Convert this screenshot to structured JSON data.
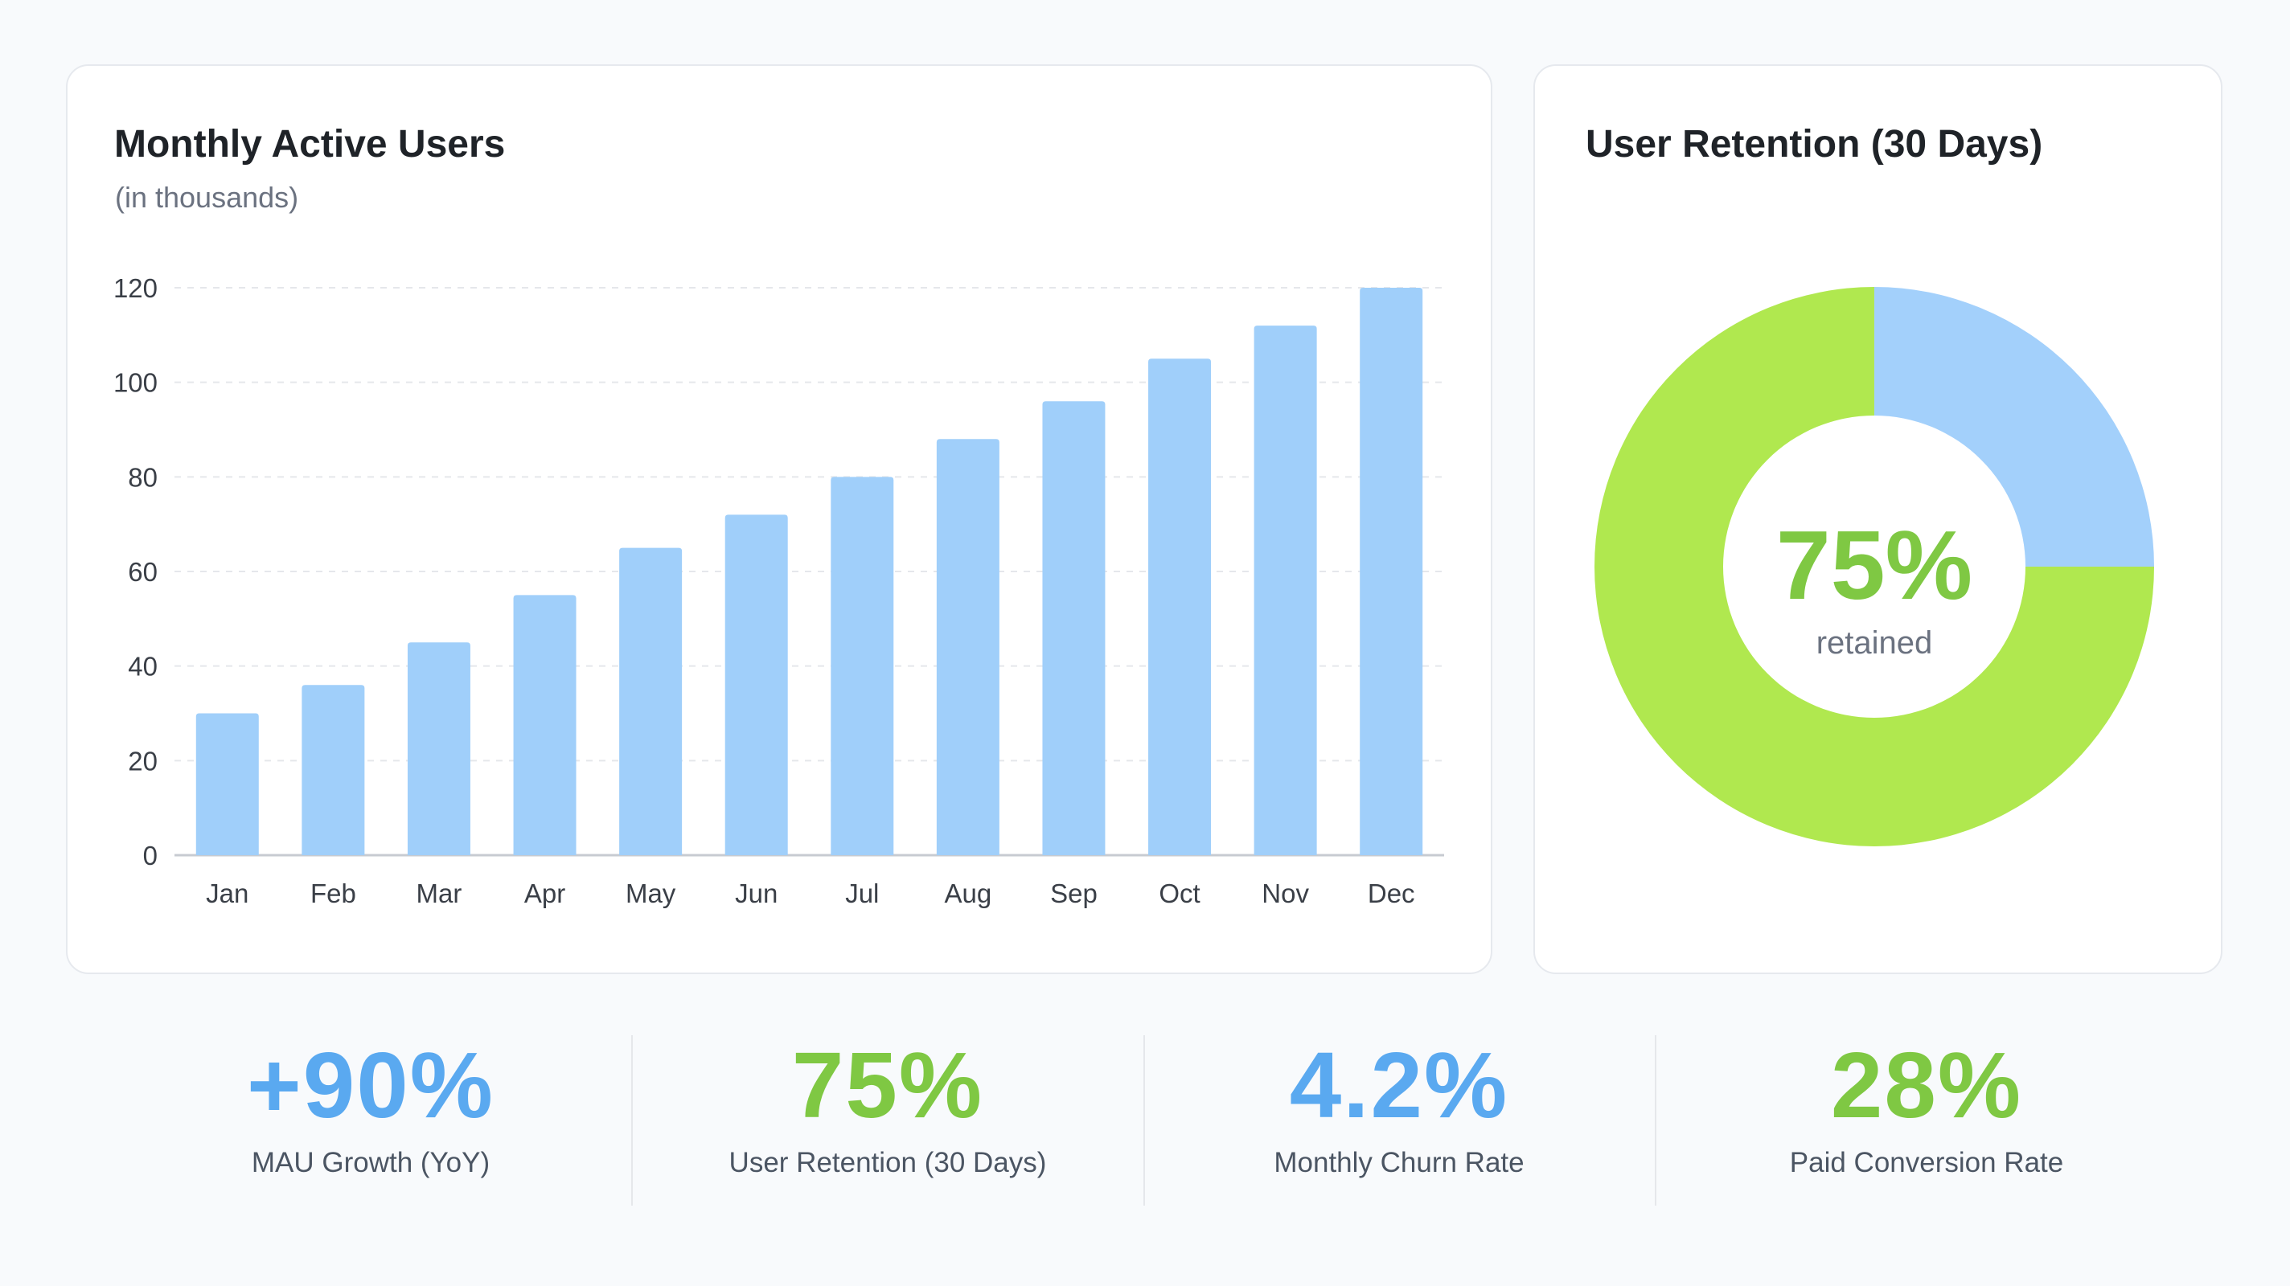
{
  "bar_card": {
    "title": "Monthly Active Users",
    "subtitle": "(in thousands)"
  },
  "donut_card": {
    "title": "User Retention (30 Days)",
    "center_value": "75%",
    "center_label": "retained"
  },
  "kpis": [
    {
      "value": "+90%",
      "label": "MAU Growth (YoY)",
      "color": "#5aa9f0"
    },
    {
      "value": "75%",
      "label": "User Retention (30 Days)",
      "color": "#7fc843"
    },
    {
      "value": "4.2%",
      "label": "Monthly Churn Rate",
      "color": "#5aa9f0"
    },
    {
      "value": "28%",
      "label": "Paid Conversion Rate",
      "color": "#7fc843"
    }
  ],
  "colors": {
    "bar": "#a0cffa",
    "retained": "#b0e84f",
    "churned": "#a3d0fb",
    "retained_text": "#7fc843",
    "blue_accent": "#5aa9f0",
    "grid": "#e5e7eb",
    "axis": "#c7cbd1"
  },
  "chart_data": [
    {
      "type": "bar",
      "title": "Monthly Active Users",
      "subtitle": "(in thousands)",
      "categories": [
        "Jan",
        "Feb",
        "Mar",
        "Apr",
        "May",
        "Jun",
        "Jul",
        "Aug",
        "Sep",
        "Oct",
        "Nov",
        "Dec"
      ],
      "values": [
        30,
        36,
        45,
        55,
        65,
        72,
        80,
        88,
        96,
        105,
        112,
        120
      ],
      "ylim": [
        0,
        120
      ],
      "yticks": [
        0,
        20,
        40,
        60,
        80,
        100,
        120
      ],
      "xlabel": "",
      "ylabel": "",
      "grid": true,
      "grid_style": "dashed horizontal"
    },
    {
      "type": "pie",
      "variant": "donut",
      "title": "User Retention (30 Days)",
      "slices": [
        {
          "value": 75
        },
        {
          "value": 25
        }
      ],
      "center_text": "75%",
      "center_subtext": "retained"
    }
  ]
}
